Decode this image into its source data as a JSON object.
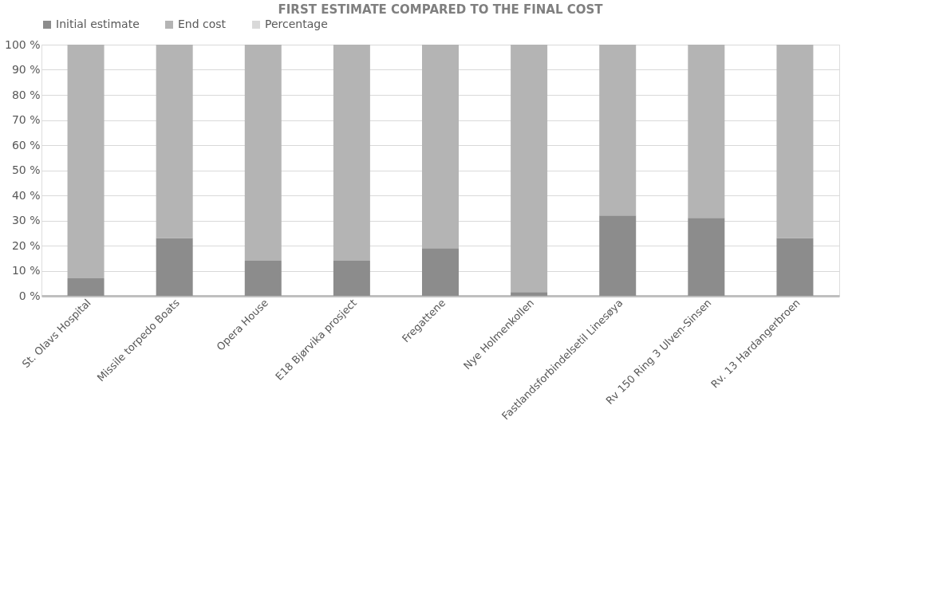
{
  "chart_data": {
    "type": "bar",
    "title": "FIRST ESTIMATE COMPARED TO THE FINAL COST",
    "stacked": true,
    "categories": [
      "St. Olavs Hospital",
      "Missile torpedo Boats",
      "Opera House",
      "E18 Bjørvika prosject",
      "Fregattene",
      "Nye Holmenkollen",
      "Fastlandsforbindelsetil Linesøya",
      "Rv 150 Ring 3 Ulven-Sinsen",
      "Rv. 13 Hardangerbroen"
    ],
    "series": [
      {
        "name": "Initial estimate",
        "color": "#8c8c8c",
        "values": [
          7,
          23,
          14,
          14,
          19,
          1.5,
          32,
          31,
          23
        ]
      },
      {
        "name": "End cost",
        "color": "#b4b4b4",
        "values": [
          93,
          77,
          86,
          86,
          81,
          98.5,
          68,
          69,
          77
        ]
      },
      {
        "name": "Percentage",
        "color": "#d9d9d9",
        "values": [
          0,
          0,
          0,
          0,
          0,
          0,
          0,
          0,
          0
        ]
      }
    ],
    "ylim": [
      0,
      100
    ],
    "yticks": [
      {
        "value": 0,
        "label": "0 %"
      },
      {
        "value": 10,
        "label": "10 %"
      },
      {
        "value": 20,
        "label": "20 %"
      },
      {
        "value": 30,
        "label": "30 %"
      },
      {
        "value": 40,
        "label": "40 %"
      },
      {
        "value": 50,
        "label": "50 %"
      },
      {
        "value": 60,
        "label": "60 %"
      },
      {
        "value": 70,
        "label": "70 %"
      },
      {
        "value": 80,
        "label": "80 %"
      },
      {
        "value": 90,
        "label": "90 %"
      },
      {
        "value": 100,
        "label": "100 %"
      }
    ],
    "grid": "y",
    "legend": "top"
  }
}
